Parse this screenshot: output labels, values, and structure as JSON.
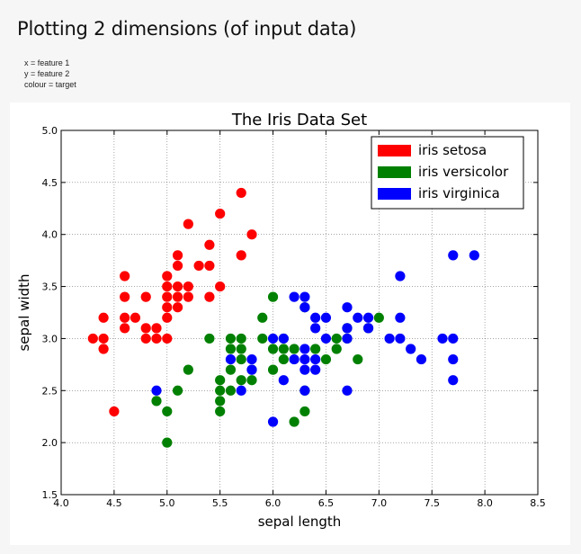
{
  "page": {
    "heading": "Plotting 2 dimensions (of input data)",
    "notes": [
      "x = feature 1",
      "y = feature 2",
      "colour = target"
    ]
  },
  "chart_data": {
    "type": "scatter",
    "title": "The Iris Data Set",
    "xlabel": "sepal length",
    "ylabel": "sepal width",
    "xlim": [
      4.0,
      8.5
    ],
    "ylim": [
      1.5,
      5.0
    ],
    "xticks": [
      "4.0",
      "4.5",
      "5.0",
      "5.5",
      "6.0",
      "6.5",
      "7.0",
      "7.5",
      "8.0",
      "8.5"
    ],
    "yticks": [
      "1.5",
      "2.0",
      "2.5",
      "3.0",
      "3.5",
      "4.0",
      "4.5",
      "5.0"
    ],
    "grid": true,
    "legend_position": "top-right",
    "series": [
      {
        "name": "iris setosa",
        "color": "#ff0000",
        "points": [
          [
            4.3,
            3.0
          ],
          [
            4.4,
            3.2
          ],
          [
            4.4,
            3.0
          ],
          [
            4.4,
            2.9
          ],
          [
            4.5,
            2.3
          ],
          [
            4.6,
            3.6
          ],
          [
            4.6,
            3.4
          ],
          [
            4.6,
            3.2
          ],
          [
            4.6,
            3.1
          ],
          [
            4.7,
            3.2
          ],
          [
            4.8,
            3.4
          ],
          [
            4.8,
            3.1
          ],
          [
            4.8,
            3.0
          ],
          [
            4.9,
            3.1
          ],
          [
            4.9,
            3.0
          ],
          [
            5.0,
            3.6
          ],
          [
            5.0,
            3.5
          ],
          [
            5.0,
            3.4
          ],
          [
            5.0,
            3.3
          ],
          [
            5.0,
            3.2
          ],
          [
            5.0,
            3.0
          ],
          [
            5.1,
            3.8
          ],
          [
            5.1,
            3.7
          ],
          [
            5.1,
            3.5
          ],
          [
            5.1,
            3.4
          ],
          [
            5.1,
            3.3
          ],
          [
            5.2,
            4.1
          ],
          [
            5.2,
            3.5
          ],
          [
            5.2,
            3.4
          ],
          [
            5.3,
            3.7
          ],
          [
            5.4,
            3.9
          ],
          [
            5.4,
            3.7
          ],
          [
            5.4,
            3.4
          ],
          [
            5.5,
            4.2
          ],
          [
            5.5,
            3.5
          ],
          [
            5.7,
            4.4
          ],
          [
            5.7,
            3.8
          ],
          [
            5.8,
            4.0
          ]
        ]
      },
      {
        "name": "iris versicolor",
        "color": "#008000",
        "points": [
          [
            4.9,
            2.4
          ],
          [
            5.0,
            2.3
          ],
          [
            5.0,
            2.0
          ],
          [
            5.1,
            2.5
          ],
          [
            5.2,
            2.7
          ],
          [
            5.4,
            3.0
          ],
          [
            5.5,
            2.6
          ],
          [
            5.5,
            2.5
          ],
          [
            5.5,
            2.4
          ],
          [
            5.5,
            2.3
          ],
          [
            5.6,
            3.0
          ],
          [
            5.6,
            2.9
          ],
          [
            5.6,
            2.7
          ],
          [
            5.6,
            2.5
          ],
          [
            5.7,
            3.0
          ],
          [
            5.7,
            2.9
          ],
          [
            5.7,
            2.8
          ],
          [
            5.7,
            2.6
          ],
          [
            5.8,
            2.7
          ],
          [
            5.8,
            2.6
          ],
          [
            5.9,
            3.2
          ],
          [
            5.9,
            3.0
          ],
          [
            6.0,
            3.4
          ],
          [
            6.0,
            2.9
          ],
          [
            6.0,
            2.7
          ],
          [
            6.1,
            3.0
          ],
          [
            6.1,
            2.9
          ],
          [
            6.1,
            2.8
          ],
          [
            6.2,
            2.9
          ],
          [
            6.2,
            2.2
          ],
          [
            6.3,
            3.3
          ],
          [
            6.3,
            2.5
          ],
          [
            6.3,
            2.3
          ],
          [
            6.4,
            2.9
          ],
          [
            6.5,
            2.8
          ],
          [
            6.6,
            3.0
          ],
          [
            6.6,
            2.9
          ],
          [
            6.7,
            3.1
          ],
          [
            6.7,
            3.0
          ],
          [
            6.8,
            2.8
          ],
          [
            6.9,
            3.1
          ],
          [
            7.0,
            3.2
          ]
        ]
      },
      {
        "name": "iris virginica",
        "color": "#0000ff",
        "points": [
          [
            4.9,
            2.5
          ],
          [
            5.6,
            2.8
          ],
          [
            5.7,
            2.5
          ],
          [
            5.8,
            2.8
          ],
          [
            5.8,
            2.7
          ],
          [
            6.0,
            3.0
          ],
          [
            6.0,
            2.2
          ],
          [
            6.1,
            3.0
          ],
          [
            6.1,
            2.6
          ],
          [
            6.2,
            3.4
          ],
          [
            6.2,
            2.8
          ],
          [
            6.3,
            3.4
          ],
          [
            6.3,
            3.3
          ],
          [
            6.3,
            2.9
          ],
          [
            6.3,
            2.8
          ],
          [
            6.3,
            2.7
          ],
          [
            6.3,
            2.5
          ],
          [
            6.4,
            3.2
          ],
          [
            6.4,
            3.1
          ],
          [
            6.4,
            2.8
          ],
          [
            6.4,
            2.7
          ],
          [
            6.5,
            3.2
          ],
          [
            6.5,
            3.0
          ],
          [
            6.7,
            3.3
          ],
          [
            6.7,
            3.1
          ],
          [
            6.7,
            3.0
          ],
          [
            6.7,
            2.5
          ],
          [
            6.8,
            3.2
          ],
          [
            6.9,
            3.2
          ],
          [
            6.9,
            3.1
          ],
          [
            7.1,
            3.0
          ],
          [
            7.2,
            3.6
          ],
          [
            7.2,
            3.2
          ],
          [
            7.2,
            3.0
          ],
          [
            7.3,
            2.9
          ],
          [
            7.4,
            2.8
          ],
          [
            7.6,
            3.0
          ],
          [
            7.7,
            3.8
          ],
          [
            7.7,
            3.0
          ],
          [
            7.7,
            2.8
          ],
          [
            7.7,
            2.6
          ],
          [
            7.9,
            3.8
          ]
        ]
      }
    ]
  }
}
